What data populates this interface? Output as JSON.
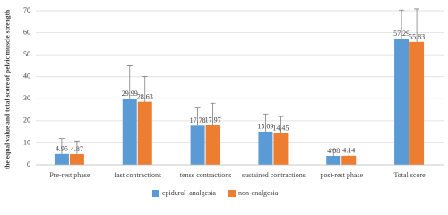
{
  "chart_data": {
    "type": "bar",
    "y_label": "the equal value and total score of pelvic muscle strength",
    "categories": [
      "Pre-rest phase",
      "fast contractions",
      "tense contractions",
      "sustained contractions",
      "post-rest phase",
      "Total score"
    ],
    "series": [
      {
        "name": "epidural  analgesia",
        "color": "#5b9bd5",
        "values": [
          4.95,
          29.99,
          17.78,
          15.09,
          4.08,
          57.29
        ],
        "errors": [
          7,
          15,
          8,
          8,
          3,
          13
        ]
      },
      {
        "name": "non-analgesia",
        "color": "#ed7d31",
        "values": [
          4.87,
          28.63,
          17.97,
          14.45,
          4.14,
          55.83
        ],
        "errors": [
          6,
          11.5,
          10,
          7.5,
          2.5,
          15
        ]
      }
    ],
    "ylim": [
      0,
      70
    ],
    "yticks": [
      0,
      10,
      20,
      30,
      40,
      50,
      60,
      70
    ],
    "grid": true,
    "legend": "bottom"
  }
}
